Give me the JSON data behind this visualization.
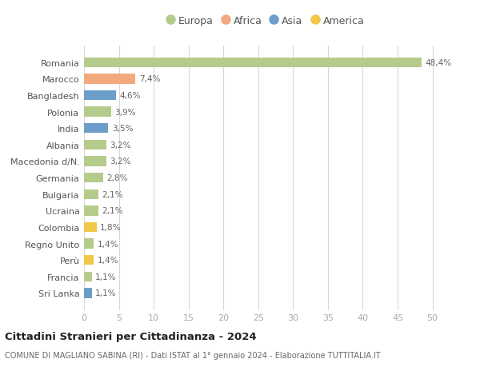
{
  "countries": [
    "Romania",
    "Marocco",
    "Bangladesh",
    "Polonia",
    "India",
    "Albania",
    "Macedonia d/N.",
    "Germania",
    "Bulgaria",
    "Ucraina",
    "Colombia",
    "Regno Unito",
    "Perù",
    "Francia",
    "Sri Lanka"
  ],
  "values": [
    48.4,
    7.4,
    4.6,
    3.9,
    3.5,
    3.2,
    3.2,
    2.8,
    2.1,
    2.1,
    1.8,
    1.4,
    1.4,
    1.1,
    1.1
  ],
  "labels": [
    "48,4%",
    "7,4%",
    "4,6%",
    "3,9%",
    "3,5%",
    "3,2%",
    "3,2%",
    "2,8%",
    "2,1%",
    "2,1%",
    "1,8%",
    "1,4%",
    "1,4%",
    "1,1%",
    "1,1%"
  ],
  "continents": [
    "Europa",
    "Africa",
    "Asia",
    "Europa",
    "Asia",
    "Europa",
    "Europa",
    "Europa",
    "Europa",
    "Europa",
    "America",
    "Europa",
    "America",
    "Europa",
    "Asia"
  ],
  "colors": {
    "Europa": "#b5cb8b",
    "Africa": "#f2a97e",
    "Asia": "#6b9ec8",
    "America": "#f0c84a"
  },
  "xlim": [
    0,
    52
  ],
  "xticks": [
    0,
    5,
    10,
    15,
    20,
    25,
    30,
    35,
    40,
    45,
    50
  ],
  "title": "Cittadini Stranieri per Cittadinanza - 2024",
  "subtitle": "COMUNE DI MAGLIANO SABINA (RI) - Dati ISTAT al 1° gennaio 2024 - Elaborazione TUTTITALIA.IT",
  "bg_color": "#ffffff",
  "grid_color": "#d8d8d8",
  "bar_height": 0.6,
  "legend_entries": [
    "Europa",
    "Africa",
    "Asia",
    "America"
  ]
}
